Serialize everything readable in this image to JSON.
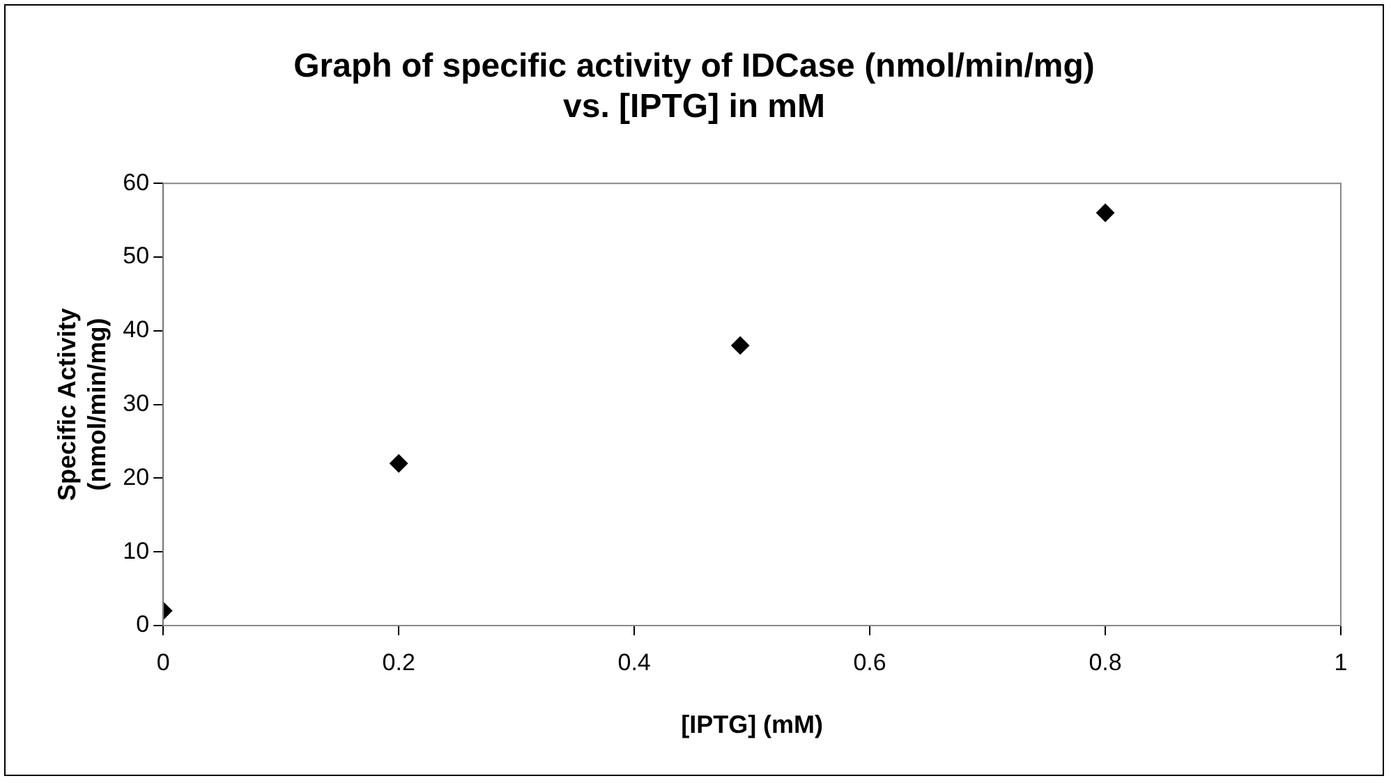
{
  "chart_data": {
    "type": "scatter",
    "title": [
      "Graph of specific activity of IDCase (nmol/min/mg)",
      "vs. [IPTG] in mM"
    ],
    "xlabel": "[IPTG] (mM)",
    "ylabel": [
      "Specific Activity",
      "(nmol/min/mg)"
    ],
    "x": [
      0,
      0.2,
      0.49,
      0.8
    ],
    "series": [
      {
        "color": "#000000",
        "values": [
          2,
          22,
          38,
          56
        ]
      }
    ],
    "xlim": [
      0,
      1
    ],
    "xticks": [
      0,
      0.2,
      0.4,
      0.6,
      0.8,
      1
    ],
    "ylim": [
      0,
      60
    ],
    "yticks": [
      0,
      10,
      20,
      30,
      40,
      50,
      60
    ],
    "grid": false,
    "legend": false,
    "marker": "diamond"
  }
}
